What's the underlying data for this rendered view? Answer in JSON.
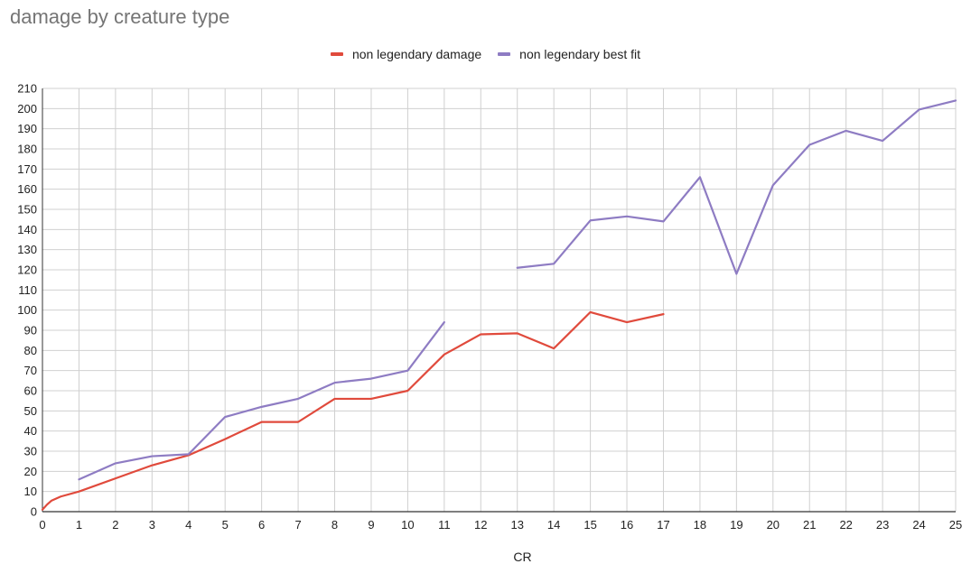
{
  "chart_data": {
    "type": "line",
    "title": "damage by creature type",
    "xlabel": "CR",
    "ylabel": "",
    "xlim": [
      0,
      25
    ],
    "ylim": [
      0,
      210
    ],
    "x_ticks": [
      0,
      1,
      2,
      3,
      4,
      5,
      6,
      7,
      8,
      9,
      10,
      11,
      12,
      13,
      14,
      15,
      16,
      17,
      18,
      19,
      20,
      21,
      22,
      23,
      24,
      25
    ],
    "y_ticks": [
      0,
      10,
      20,
      30,
      40,
      50,
      60,
      70,
      80,
      90,
      100,
      110,
      120,
      130,
      140,
      150,
      160,
      170,
      180,
      190,
      200,
      210
    ],
    "grid": true,
    "legend_position": "top",
    "series": [
      {
        "name": "non legendary damage",
        "color": "#e04a3c",
        "segments": [
          [
            [
              0,
              1
            ],
            [
              0.125,
              3.5
            ],
            [
              0.25,
              5.5
            ],
            [
              0.5,
              7.5
            ],
            [
              1,
              10
            ],
            [
              2,
              16.5
            ],
            [
              3,
              23
            ],
            [
              4,
              28
            ],
            [
              5,
              36
            ],
            [
              6,
              44.5
            ],
            [
              7,
              44.5
            ],
            [
              8,
              56
            ],
            [
              9,
              56
            ],
            [
              10,
              60
            ],
            [
              11,
              78
            ],
            [
              12,
              88
            ],
            [
              13,
              88.5
            ],
            [
              14,
              81
            ],
            [
              15,
              99
            ],
            [
              16,
              94
            ],
            [
              17,
              98
            ]
          ]
        ]
      },
      {
        "name": "non legendary best fit",
        "color": "#8e7cc3",
        "segments": [
          [
            [
              1,
              16
            ],
            [
              2,
              24
            ],
            [
              3,
              27.5
            ],
            [
              4,
              28.5
            ],
            [
              5,
              47
            ],
            [
              6,
              52
            ],
            [
              7,
              56
            ],
            [
              8,
              64
            ],
            [
              9,
              66
            ],
            [
              10,
              70
            ],
            [
              11,
              94
            ]
          ],
          [
            [
              13,
              121
            ],
            [
              14,
              123
            ],
            [
              15,
              144.5
            ],
            [
              16,
              146.5
            ],
            [
              17,
              144
            ],
            [
              18,
              166
            ],
            [
              19,
              118
            ],
            [
              20,
              162
            ],
            [
              21,
              182
            ],
            [
              22,
              189
            ],
            [
              23,
              184
            ],
            [
              24,
              199.5
            ],
            [
              25,
              204
            ]
          ]
        ]
      }
    ]
  }
}
